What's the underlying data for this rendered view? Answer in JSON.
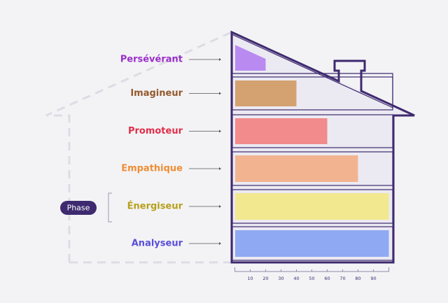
{
  "chart_data": {
    "type": "house-bar",
    "categories": [
      "Persévérant",
      "Imagineur",
      "Promoteur",
      "Empathique",
      "Énergiseur",
      "Analyseur"
    ],
    "values": [
      20,
      40,
      60,
      80,
      100,
      100
    ],
    "colors": [
      "#b98af0",
      "#d4a171",
      "#f28b8b",
      "#f2b490",
      "#f2e88f",
      "#8faaf2"
    ],
    "label_colors": [
      "#9a2fc9",
      "#94592a",
      "#e02f4a",
      "#ef8e35",
      "#b7a01d",
      "#5a4fd8"
    ],
    "xlim": [
      0,
      100
    ],
    "xticks": [
      10,
      20,
      30,
      40,
      50,
      60,
      70,
      80,
      90
    ],
    "annotation": "Phase"
  }
}
